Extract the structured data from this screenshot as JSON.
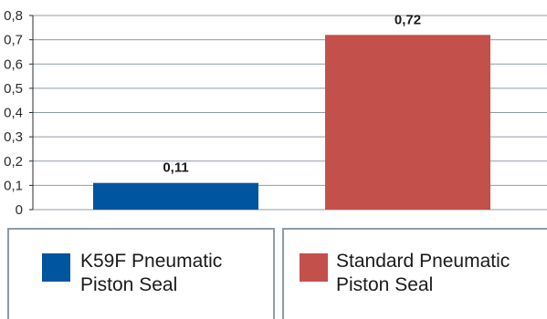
{
  "chart_data": {
    "type": "bar",
    "categories": [
      "K59F Pneumatic Piston Seal",
      "Standard Pneumatic Piston Seal"
    ],
    "values": [
      0.11,
      0.72
    ],
    "value_labels": [
      "0,11",
      "0,72"
    ],
    "colors": [
      "#0055a0",
      "#c4504c"
    ],
    "ylim": [
      0,
      0.8
    ],
    "yticks": [
      0,
      0.1,
      0.2,
      0.3,
      0.4,
      0.5,
      0.6,
      0.7,
      0.8
    ],
    "ytick_labels": [
      "0",
      "0,1",
      "0,2",
      "0,3",
      "0,4",
      "0,5",
      "0,6",
      "0,7",
      "0,8"
    ],
    "grid": true,
    "legend_position": "bottom"
  },
  "legend": [
    {
      "line1": "K59F Pneumatic",
      "line2": "Piston Seal",
      "color": "#0055a0"
    },
    {
      "line1": "Standard Pneumatic",
      "line2": "Piston Seal",
      "color": "#c4504c"
    }
  ]
}
